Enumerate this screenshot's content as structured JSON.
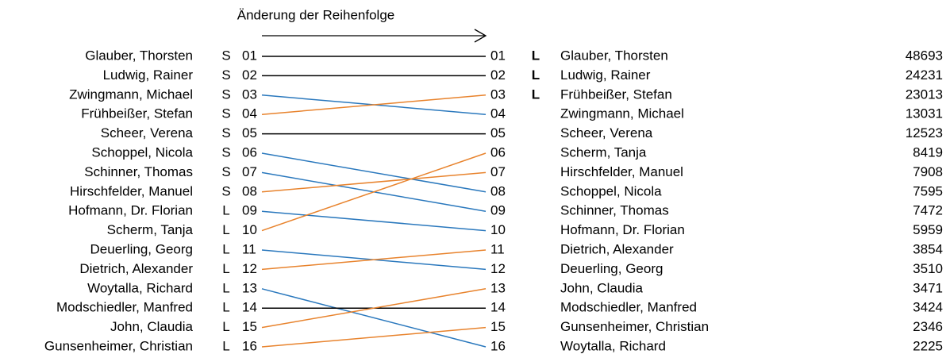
{
  "title": "Änderung der Reihenfolge",
  "colors": {
    "same": "#000000",
    "down": "#2a78bd",
    "up": "#e8832d"
  },
  "left": [
    {
      "name": "Glauber, Thorsten",
      "letter": "S",
      "num": "01"
    },
    {
      "name": "Ludwig, Rainer",
      "letter": "S",
      "num": "02"
    },
    {
      "name": "Zwingmann, Michael",
      "letter": "S",
      "num": "03"
    },
    {
      "name": "Frühbeißer, Stefan",
      "letter": "S",
      "num": "04"
    },
    {
      "name": "Scheer, Verena",
      "letter": "S",
      "num": "05"
    },
    {
      "name": "Schoppel, Nicola",
      "letter": "S",
      "num": "06"
    },
    {
      "name": "Schinner, Thomas",
      "letter": "S",
      "num": "07"
    },
    {
      "name": "Hirschfelder, Manuel",
      "letter": "S",
      "num": "08"
    },
    {
      "name": "Hofmann, Dr. Florian",
      "letter": "L",
      "num": "09"
    },
    {
      "name": "Scherm, Tanja",
      "letter": "L",
      "num": "10"
    },
    {
      "name": "Deuerling, Georg",
      "letter": "L",
      "num": "11"
    },
    {
      "name": "Dietrich, Alexander",
      "letter": "L",
      "num": "12"
    },
    {
      "name": "Woytalla, Richard",
      "letter": "L",
      "num": "13"
    },
    {
      "name": "Modschiedler, Manfred",
      "letter": "L",
      "num": "14"
    },
    {
      "name": "John, Claudia",
      "letter": "L",
      "num": "15"
    },
    {
      "name": "Gunsenheimer, Christian",
      "letter": "L",
      "num": "16"
    }
  ],
  "right": [
    {
      "num": "01",
      "letter": "L",
      "name": "Glauber, Thorsten",
      "votes": "48693"
    },
    {
      "num": "02",
      "letter": "L",
      "name": "Ludwig, Rainer",
      "votes": "24231"
    },
    {
      "num": "03",
      "letter": "L",
      "name": "Frühbeißer, Stefan",
      "votes": "23013"
    },
    {
      "num": "04",
      "name": "Zwingmann, Michael",
      "votes": "13031"
    },
    {
      "num": "05",
      "name": "Scheer, Verena",
      "votes": "12523"
    },
    {
      "num": "06",
      "name": "Scherm, Tanja",
      "votes": "8419"
    },
    {
      "num": "07",
      "name": "Hirschfelder, Manuel",
      "votes": "7908"
    },
    {
      "num": "08",
      "name": "Schoppel, Nicola",
      "votes": "7595"
    },
    {
      "num": "09",
      "name": "Schinner, Thomas",
      "votes": "7472"
    },
    {
      "num": "10",
      "name": "Hofmann, Dr. Florian",
      "votes": "5959"
    },
    {
      "num": "11",
      "name": "Dietrich, Alexander",
      "votes": "3854"
    },
    {
      "num": "12",
      "name": "Deuerling, Georg",
      "votes": "3510"
    },
    {
      "num": "13",
      "name": "John, Claudia",
      "votes": "3471"
    },
    {
      "num": "14",
      "name": "Modschiedler, Manfred",
      "votes": "3424"
    },
    {
      "num": "15",
      "name": "Gunsenheimer, Christian",
      "votes": "2346"
    },
    {
      "num": "16",
      "name": "Woytalla, Richard",
      "votes": "2225"
    }
  ]
}
